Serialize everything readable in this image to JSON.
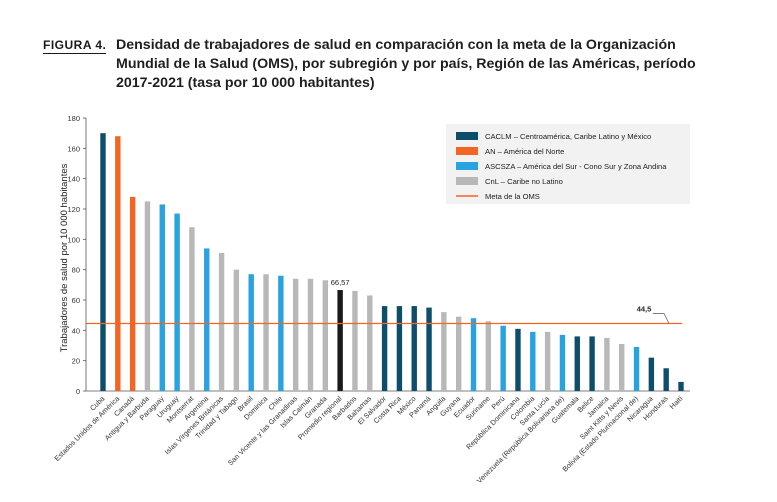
{
  "figure": {
    "label": "FIGURA 4.",
    "title": "Densidad de trabajadores de salud en comparación con la meta de la Organización Mundial de la Salud (OMS), por subregión y por país, Región de las Américas, período 2017-2021 (tasa por 10 000 habitantes)"
  },
  "chart_data": {
    "type": "bar",
    "ylabel": "Trabajadores de salud por 10 000 habitantes",
    "xlabel": "",
    "ylim": [
      0,
      180
    ],
    "yticks": [
      0,
      20,
      40,
      60,
      80,
      100,
      120,
      140,
      160,
      180
    ],
    "grid": false,
    "legend_position": "top-right",
    "colors": {
      "CACLM": "#0d4f6b",
      "AN": "#f26522",
      "ASCSZA": "#29a3e0",
      "CnL": "#b8b8b8",
      "REG": "#1a1a1a",
      "meta": "#f26522"
    },
    "legend": [
      {
        "key": "CACLM",
        "label": "CACLM – Centroamérica, Caribe Latino y México"
      },
      {
        "key": "AN",
        "label": "AN – América del Norte"
      },
      {
        "key": "ASCSZA",
        "label": "ASCSZA – América del Sur - Cono Sur y Zona Andina"
      },
      {
        "key": "CnL",
        "label": "CnL – Caribe no Latino"
      },
      {
        "key": "meta",
        "label": "Meta de la OMS"
      }
    ],
    "target": {
      "value": 44.5,
      "label": "44,5"
    },
    "regional_label": "66,57",
    "categories": [
      "Cuba",
      "Estados Unidos de América",
      "Canadá",
      "Antigua y Barbuda",
      "Paraguay",
      "Uruguay",
      "Montserrat",
      "Argentina",
      "Islas Vírgenes Británicas",
      "Trinidad y Tabago",
      "Brasil",
      "Dominica",
      "Chile",
      "San Vicente y las Granadinas",
      "Islas Caimán",
      "Granada",
      "Promedio regional",
      "Barbados",
      "Bahamas",
      "El Salvador",
      "Costa Rica",
      "México",
      "Panamá",
      "Anguila",
      "Guyana",
      "Ecuador",
      "Suriname",
      "Perú",
      "República Dominicana",
      "Colombia",
      "Santa Lucía",
      "Venezuela (República Bolivariana de)",
      "Guatemala",
      "Belice",
      "Jamaica",
      "Saint Kitts y Nevis",
      "Bolivia (Estado Plurinacional de)",
      "Nicaragua",
      "Honduras",
      "Haití"
    ],
    "values": [
      170,
      168,
      128,
      125,
      123,
      117,
      108,
      94,
      91,
      80,
      77,
      77,
      76,
      74,
      74,
      73,
      66.57,
      66,
      63,
      56,
      56,
      56,
      55,
      52,
      49,
      48,
      46,
      43,
      41,
      39,
      39,
      37,
      36,
      36,
      35,
      31,
      29,
      22,
      15,
      6
    ],
    "groups": [
      "CACLM",
      "AN",
      "AN",
      "CnL",
      "ASCSZA",
      "ASCSZA",
      "CnL",
      "ASCSZA",
      "CnL",
      "CnL",
      "ASCSZA",
      "CnL",
      "ASCSZA",
      "CnL",
      "CnL",
      "CnL",
      "REG",
      "CnL",
      "CnL",
      "CACLM",
      "CACLM",
      "CACLM",
      "CACLM",
      "CnL",
      "CnL",
      "ASCSZA",
      "CnL",
      "ASCSZA",
      "CACLM",
      "ASCSZA",
      "CnL",
      "ASCSZA",
      "CACLM",
      "CACLM",
      "CnL",
      "CnL",
      "ASCSZA",
      "CACLM",
      "CACLM",
      "CACLM"
    ]
  }
}
